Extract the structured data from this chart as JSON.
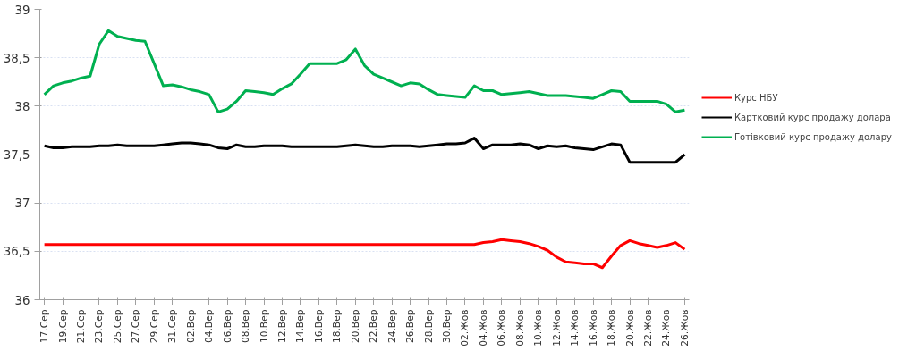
{
  "chart_data": {
    "type": "line",
    "categories": [
      "17.Сер",
      null,
      "19.Сер",
      null,
      "21.Сер",
      null,
      "23.Сер",
      null,
      "25.Сер",
      null,
      "27.Сер",
      null,
      "29.Сер",
      null,
      "31.Сер",
      null,
      "02.Вер",
      null,
      "04.Вер",
      null,
      "06.Вер",
      null,
      "08.Вер",
      null,
      "10.Вер",
      null,
      "12.Вер",
      null,
      "14.Вер",
      null,
      "16.Вер",
      null,
      "18.Вер",
      null,
      "20.Вер",
      null,
      "22.Вер",
      null,
      "24.Вер",
      null,
      "26.Вер",
      null,
      "28.Вер",
      null,
      "30.Вер",
      null,
      "02.Жов",
      null,
      "04.Жов",
      null,
      "06.Жов",
      null,
      "08.Жов",
      null,
      "10.Жов",
      null,
      "12.Жов",
      null,
      "14.Жов",
      null,
      "16.Жов",
      null,
      "18.Жов",
      null,
      "20.Жов",
      null,
      "22.Жов",
      null,
      "24.Жов",
      null,
      "26.Жов"
    ],
    "series": [
      {
        "name": "Курс НБУ",
        "color": "#ff0000",
        "values": [
          36.57,
          36.57,
          36.57,
          36.57,
          36.57,
          36.57,
          36.57,
          36.57,
          36.57,
          36.57,
          36.57,
          36.57,
          36.57,
          36.57,
          36.57,
          36.57,
          36.57,
          36.57,
          36.57,
          36.57,
          36.57,
          36.57,
          36.57,
          36.57,
          36.57,
          36.57,
          36.57,
          36.57,
          36.57,
          36.57,
          36.57,
          36.57,
          36.57,
          36.57,
          36.57,
          36.57,
          36.57,
          36.57,
          36.57,
          36.57,
          36.57,
          36.57,
          36.57,
          36.57,
          36.57,
          36.57,
          36.57,
          36.57,
          36.59,
          36.6,
          36.62,
          36.61,
          36.6,
          36.58,
          36.55,
          36.51,
          36.44,
          36.39,
          36.38,
          36.37,
          36.37,
          36.33,
          36.45,
          36.56,
          36.61,
          36.58,
          36.56,
          36.54,
          36.56,
          36.59,
          36.52
        ]
      },
      {
        "name": "Картковий курс продажу долара",
        "color": "#000000",
        "values": [
          37.59,
          37.57,
          37.57,
          37.58,
          37.58,
          37.58,
          37.59,
          37.59,
          37.6,
          37.59,
          37.59,
          37.59,
          37.59,
          37.6,
          37.61,
          37.62,
          37.62,
          37.61,
          37.6,
          37.57,
          37.56,
          37.6,
          37.58,
          37.58,
          37.59,
          37.59,
          37.59,
          37.58,
          37.58,
          37.58,
          37.58,
          37.58,
          37.58,
          37.59,
          37.6,
          37.59,
          37.58,
          37.58,
          37.59,
          37.59,
          37.59,
          37.58,
          37.59,
          37.6,
          37.61,
          37.61,
          37.62,
          37.67,
          37.56,
          37.6,
          37.6,
          37.6,
          37.61,
          37.6,
          37.56,
          37.59,
          37.58,
          37.59,
          37.57,
          37.56,
          37.55,
          37.58,
          37.61,
          37.6,
          37.42,
          37.42,
          37.42,
          37.42,
          37.42,
          37.42,
          37.5
        ]
      },
      {
        "name": "Готівковий курс продажу долару",
        "color": "#00b050",
        "values": [
          38.12,
          38.21,
          38.24,
          38.26,
          38.29,
          38.31,
          38.64,
          38.78,
          38.72,
          38.7,
          38.68,
          38.67,
          38.44,
          38.21,
          38.22,
          38.2,
          38.17,
          38.15,
          38.12,
          37.94,
          37.97,
          38.05,
          38.16,
          38.15,
          38.14,
          38.12,
          38.18,
          38.23,
          38.33,
          38.44,
          38.44,
          38.44,
          38.44,
          38.48,
          38.59,
          38.42,
          38.33,
          38.29,
          38.25,
          38.21,
          38.24,
          38.23,
          38.17,
          38.12,
          38.11,
          38.1,
          38.09,
          38.21,
          38.16,
          38.16,
          38.12,
          38.13,
          38.14,
          38.15,
          38.13,
          38.11,
          38.11,
          38.11,
          38.1,
          38.09,
          38.08,
          38.12,
          38.16,
          38.15,
          38.05,
          38.05,
          38.05,
          38.05,
          38.02,
          37.94,
          37.96
        ]
      }
    ],
    "ylim": [
      36,
      39
    ],
    "yticks": [
      36,
      {
        "value": 36.5,
        "label": "36,5"
      },
      37,
      {
        "value": 37.5,
        "label": "37,5"
      },
      38,
      {
        "value": 38.5,
        "label": "38,5"
      },
      39
    ],
    "grid": "y",
    "legend": "right",
    "marker": "none",
    "line_style": "solid"
  }
}
